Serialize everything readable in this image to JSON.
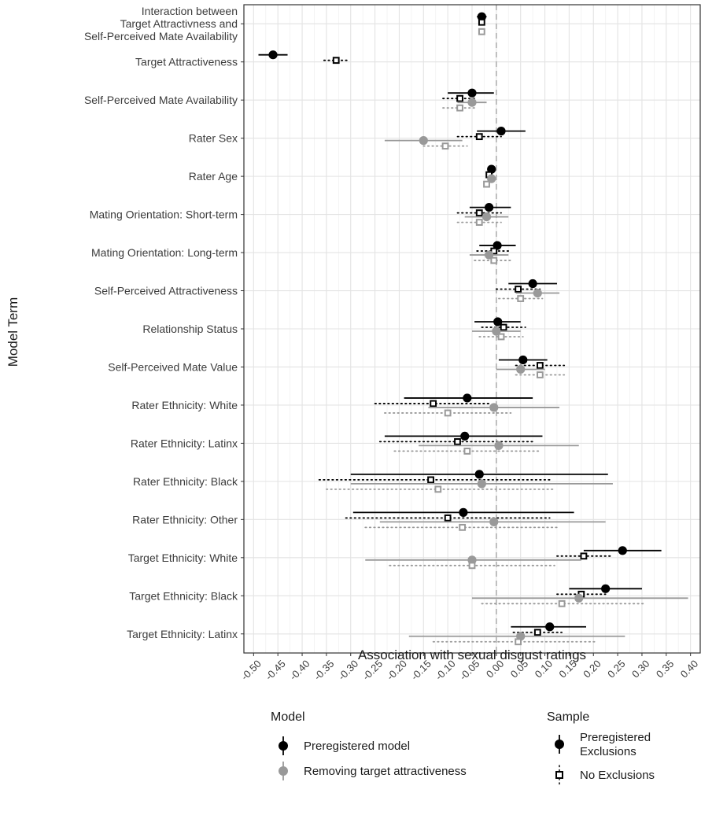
{
  "chart_data": {
    "type": "forest",
    "title": "",
    "xlabel": "Association with sexual disgust ratings",
    "ylabel": "Model Term",
    "xlim": [
      -0.52,
      0.42
    ],
    "x_ticks": [
      "-0.50",
      "-0.45",
      "-0.40",
      "-0.35",
      "-0.30",
      "-0.25",
      "-0.20",
      "-0.15",
      "-0.10",
      "-0.05",
      "0.00",
      "0.05",
      "0.10",
      "0.15",
      "0.20",
      "0.25",
      "0.30",
      "0.35",
      "0.40"
    ],
    "x_tick_values": [
      -0.5,
      -0.45,
      -0.4,
      -0.35,
      -0.3,
      -0.25,
      -0.2,
      -0.15,
      -0.1,
      -0.05,
      0,
      0.05,
      0.1,
      0.15,
      0.2,
      0.25,
      0.3,
      0.35,
      0.4
    ],
    "reference_line": 0,
    "grid": true,
    "terms": [
      [
        "Interaction between",
        "Target Attractivness and",
        "Self-Perceived Mate Availability"
      ],
      [
        "Target Attractiveness"
      ],
      [
        "Self-Perceived Mate Availability"
      ],
      [
        "Rater Sex"
      ],
      [
        "Rater Age"
      ],
      [
        "Mating Orientation: Short-term"
      ],
      [
        "Mating Orientation: Long-term"
      ],
      [
        "Self-Perceived Attractiveness"
      ],
      [
        "Relationship Status"
      ],
      [
        "Self-Perceived Mate Value"
      ],
      [
        "Rater Ethnicity: White"
      ],
      [
        "Rater Ethnicity: Latinx"
      ],
      [
        "Rater Ethnicity: Black"
      ],
      [
        "Rater Ethnicity: Other"
      ],
      [
        "Target Ethnicity: White"
      ],
      [
        "Target Ethnicity: Black"
      ],
      [
        "Target Ethnicity: Latinx"
      ]
    ],
    "series": [
      {
        "model": "Preregistered model",
        "sample": "Preregistered Exclusions",
        "color": "#000000",
        "marker": "circle",
        "line": "solid",
        "estimates": [
          -0.03,
          -0.46,
          -0.05,
          0.01,
          -0.01,
          -0.015,
          0.002,
          0.075,
          0.003,
          0.055,
          -0.06,
          -0.065,
          -0.035,
          -0.068,
          0.26,
          0.225,
          0.11
        ],
        "lower": [
          -0.04,
          -0.49,
          -0.1,
          -0.04,
          -0.015,
          -0.055,
          -0.035,
          0.025,
          -0.045,
          0.005,
          -0.19,
          -0.23,
          -0.3,
          -0.295,
          0.18,
          0.15,
          0.03
        ],
        "upper": [
          -0.02,
          -0.43,
          -0.005,
          0.06,
          -0.005,
          0.03,
          0.04,
          0.125,
          0.05,
          0.105,
          0.075,
          0.095,
          0.23,
          0.16,
          0.34,
          0.3,
          0.185
        ]
      },
      {
        "model": "Preregistered model",
        "sample": "No Exclusions",
        "color": "#000000",
        "marker": "square-open",
        "line": "dotted",
        "estimates": [
          -0.03,
          -0.33,
          -0.075,
          -0.035,
          -0.015,
          -0.035,
          -0.005,
          0.045,
          0.015,
          0.09,
          -0.13,
          -0.08,
          -0.135,
          -0.1,
          0.18,
          0.175,
          0.085
        ],
        "lower": [
          -0.03,
          -0.355,
          -0.11,
          -0.08,
          -0.02,
          -0.08,
          -0.04,
          0.0,
          -0.03,
          0.04,
          -0.25,
          -0.24,
          -0.365,
          -0.31,
          0.125,
          0.125,
          0.035
        ],
        "upper": [
          -0.03,
          -0.305,
          -0.04,
          0.01,
          -0.01,
          0.01,
          0.03,
          0.09,
          0.06,
          0.14,
          -0.01,
          0.08,
          0.11,
          0.11,
          0.24,
          0.225,
          0.135
        ]
      },
      {
        "model": "Removing target attractiveness",
        "sample": "Preregistered Exclusions",
        "color": "#999999",
        "marker": "circle",
        "line": "solid",
        "estimates": [
          null,
          null,
          -0.05,
          -0.15,
          -0.01,
          -0.02,
          -0.015,
          0.085,
          0.0,
          0.05,
          -0.005,
          0.005,
          -0.03,
          -0.005,
          -0.05,
          0.17,
          0.05
        ],
        "lower": [
          null,
          null,
          -0.08,
          -0.23,
          -0.015,
          -0.065,
          -0.055,
          0.04,
          -0.05,
          0.0,
          -0.14,
          -0.16,
          -0.3,
          -0.24,
          -0.27,
          -0.05,
          -0.18
        ],
        "upper": [
          null,
          null,
          -0.02,
          -0.07,
          -0.005,
          0.025,
          0.025,
          0.13,
          0.05,
          0.1,
          0.13,
          0.17,
          0.24,
          0.225,
          0.175,
          0.395,
          0.265
        ]
      },
      {
        "model": "Removing target attractiveness",
        "sample": "No Exclusions",
        "color": "#999999",
        "marker": "square-open",
        "line": "dotted",
        "estimates": [
          -0.03,
          null,
          -0.075,
          -0.105,
          -0.02,
          -0.035,
          -0.005,
          0.05,
          0.01,
          0.09,
          -0.1,
          -0.06,
          -0.12,
          -0.07,
          -0.05,
          0.135,
          0.045
        ],
        "lower": [
          -0.03,
          null,
          -0.11,
          -0.15,
          -0.025,
          -0.08,
          -0.045,
          0.005,
          -0.035,
          0.04,
          -0.23,
          -0.21,
          -0.35,
          -0.27,
          -0.22,
          -0.03,
          -0.13
        ],
        "upper": [
          -0.03,
          null,
          -0.04,
          -0.06,
          -0.015,
          0.01,
          0.035,
          0.095,
          0.055,
          0.14,
          0.03,
          0.09,
          0.12,
          0.13,
          0.12,
          0.305,
          0.205
        ]
      }
    ],
    "legend": {
      "model": {
        "title": "Model",
        "items": [
          {
            "label": "Preregistered model",
            "color": "#000000"
          },
          {
            "label": "Removing target attractiveness",
            "color": "#999999"
          }
        ]
      },
      "sample": {
        "title": "Sample",
        "items": [
          {
            "label_lines": [
              "Preregistered",
              "Exclusions"
            ],
            "marker": "circle"
          },
          {
            "label_lines": [
              "No Exclusions"
            ],
            "marker": "square-open"
          }
        ]
      },
      "placement": "bottom"
    }
  }
}
